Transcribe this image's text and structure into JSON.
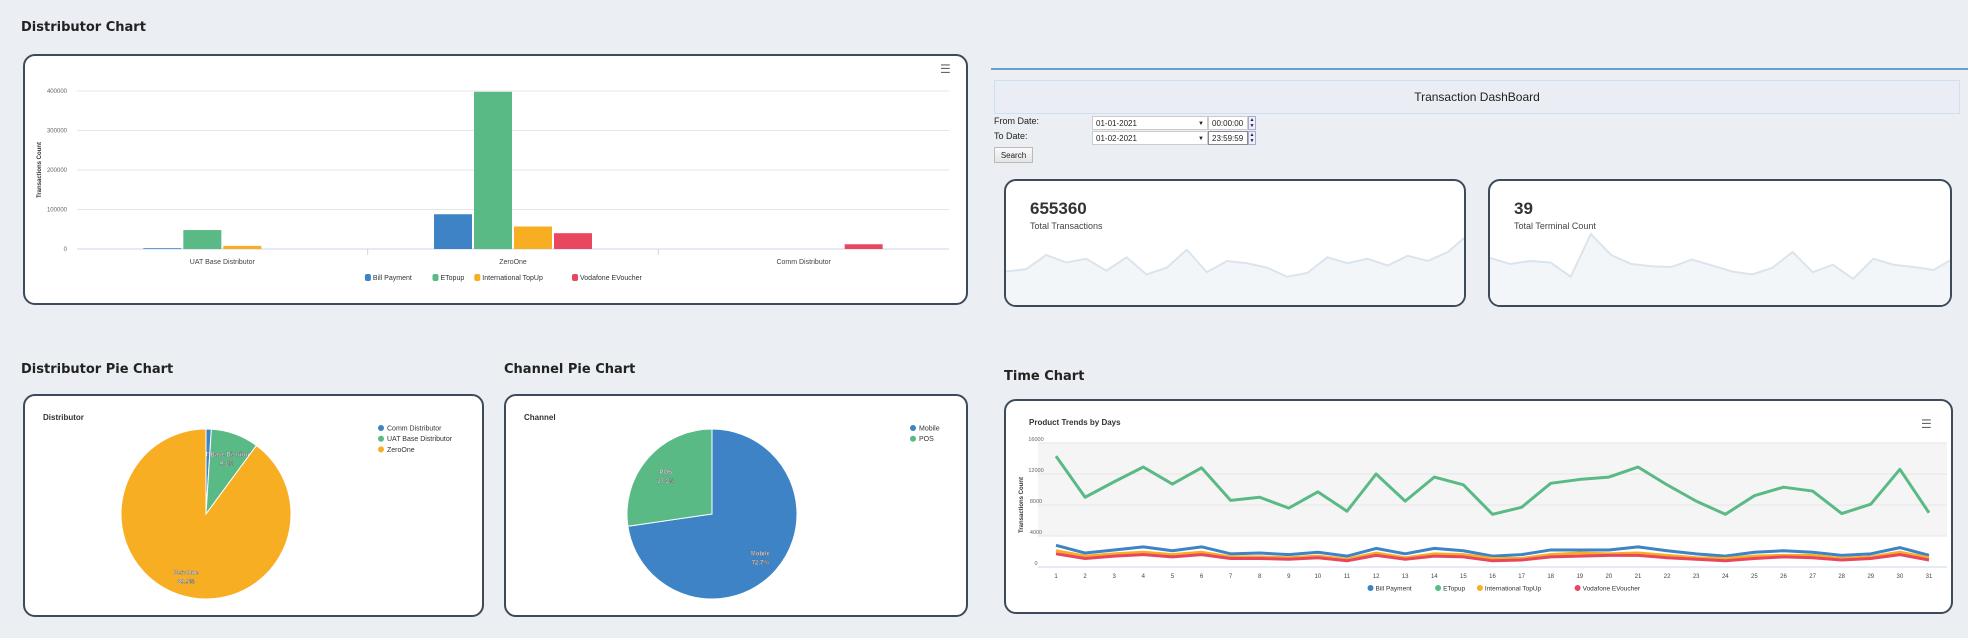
{
  "sections": {
    "distributor_chart": "Distributor Chart",
    "distributor_pie": "Distributor Pie Chart",
    "channel_pie": "Channel Pie Chart",
    "time_chart": "Time Chart"
  },
  "dashboard": {
    "title": "Transaction DashBoard",
    "from_label": "From Date:",
    "from_date": "01-01-2021",
    "from_time": "00:00:00",
    "to_label": "To Date:",
    "to_date": "01-02-2021",
    "to_time": "23:59:59",
    "search_label": "Search",
    "stats": [
      {
        "value": "655360",
        "label": "Total Transactions",
        "spark": [
          5,
          5.3,
          7.2,
          6.2,
          6.7,
          5.1,
          6.9,
          4.6,
          5.5,
          7.9,
          4.9,
          6.4,
          6.1,
          5.5,
          4.3,
          4.8,
          6.9,
          6.1,
          6.7,
          5.8,
          7.1,
          6.4,
          7.6,
          9.9
        ]
      },
      {
        "value": "39",
        "label": "Total Terminal Count",
        "spark": [
          6.8,
          6,
          6.4,
          6.2,
          4.3,
          10,
          7.2,
          6,
          5.7,
          5.6,
          6.6,
          5.8,
          5,
          4.6,
          5.5,
          7.6,
          4.9,
          5.9,
          4,
          6.7,
          5.9,
          5.6,
          5.2,
          6.8
        ]
      }
    ]
  },
  "colors": {
    "bill": "#3d83c6",
    "etopup": "#5aba86",
    "intl": "#f8ae22",
    "voda": "#e8475f"
  },
  "chart_data": [
    {
      "type": "bar",
      "title": "",
      "ylabel": "Transactions Count",
      "ylim": [
        0,
        400000
      ],
      "yticks": [
        "0",
        "100000",
        "200000",
        "300000",
        "400000"
      ],
      "categories": [
        "UAT Base Distributor",
        "ZeroOne",
        "Comm Distributor"
      ],
      "series": [
        {
          "name": "Bill Payment",
          "color": "#3d83c6",
          "values": [
            2000,
            88000,
            0
          ]
        },
        {
          "name": "ETopup",
          "color": "#5aba86",
          "values": [
            48000,
            398000,
            0
          ]
        },
        {
          "name": "International TopUp",
          "color": "#f8ae22",
          "values": [
            8000,
            57000,
            0
          ]
        },
        {
          "name": "Vodafone EVoucher",
          "color": "#e8475f",
          "values": [
            0,
            40000,
            12000
          ]
        }
      ],
      "legend": "bottom"
    },
    {
      "type": "pie",
      "title": "Distributor",
      "slices": [
        {
          "name": "Comm Distributor",
          "value": 1.0,
          "color": "#3d83c6",
          "label": ""
        },
        {
          "name": "UAT Base Distributor",
          "value": 9.1,
          "color": "#5aba86",
          "label": "9.1%"
        },
        {
          "name": "ZeroOne",
          "value": 89.9,
          "color": "#f8ae22",
          "label": "89.9%"
        }
      ],
      "legend": "top-right"
    },
    {
      "type": "pie",
      "title": "Channel",
      "slices": [
        {
          "name": "Mobile",
          "value": 72.7,
          "color": "#3d83c6",
          "label": "72.7%"
        },
        {
          "name": "POS",
          "value": 27.3,
          "color": "#5aba86",
          "label": "27.3%"
        }
      ],
      "legend": "top-right"
    },
    {
      "type": "line",
      "title": "Product Trends by Days",
      "ylabel": "Transactions Count",
      "ylim": [
        0,
        16000
      ],
      "yticks": [
        "0",
        "4000",
        "8000",
        "12000",
        "16000"
      ],
      "x": [
        1,
        2,
        3,
        4,
        5,
        6,
        7,
        8,
        9,
        10,
        11,
        12,
        13,
        14,
        15,
        16,
        17,
        18,
        19,
        20,
        21,
        22,
        23,
        24,
        25,
        26,
        27,
        28,
        29,
        30,
        31
      ],
      "series": [
        {
          "name": "Bill Payment",
          "color": "#3d83c6",
          "values": [
            2800,
            1800,
            2200,
            2600,
            2100,
            2600,
            1700,
            1800,
            1600,
            1900,
            1400,
            2400,
            1700,
            2400,
            2100,
            1400,
            1600,
            2200,
            2200,
            2200,
            2600,
            2100,
            1700,
            1400,
            1900,
            2100,
            1900,
            1500,
            1700,
            2500,
            1500
          ]
        },
        {
          "name": "ETopup",
          "color": "#5aba86",
          "values": [
            14300,
            9000,
            11000,
            12900,
            10700,
            12800,
            8600,
            9000,
            7600,
            9700,
            7200,
            12000,
            8500,
            11600,
            10600,
            6800,
            7700,
            10800,
            11300,
            11600,
            12900,
            10600,
            8500,
            6800,
            9200,
            10300,
            9800,
            6900,
            8100,
            12600,
            7000
          ]
        },
        {
          "name": "International TopUp",
          "color": "#f8ae22",
          "values": [
            2100,
            1400,
            1700,
            1900,
            1600,
            1900,
            1300,
            1300,
            1200,
            1400,
            1000,
            1800,
            1200,
            1700,
            1600,
            1100,
            1100,
            1600,
            1800,
            1700,
            1800,
            1500,
            1200,
            1100,
            1400,
            1500,
            1500,
            1100,
            1300,
            1900,
            1200
          ]
        },
        {
          "name": "Vodafone EVoucher",
          "color": "#e8475f",
          "values": [
            1700,
            1100,
            1400,
            1600,
            1300,
            1600,
            1100,
            1100,
            1000,
            1200,
            800,
            1500,
            1000,
            1400,
            1300,
            800,
            900,
            1300,
            1400,
            1500,
            1500,
            1200,
            1000,
            800,
            1100,
            1300,
            1200,
            900,
            1100,
            1600,
            900
          ]
        }
      ],
      "legend": "bottom"
    }
  ]
}
